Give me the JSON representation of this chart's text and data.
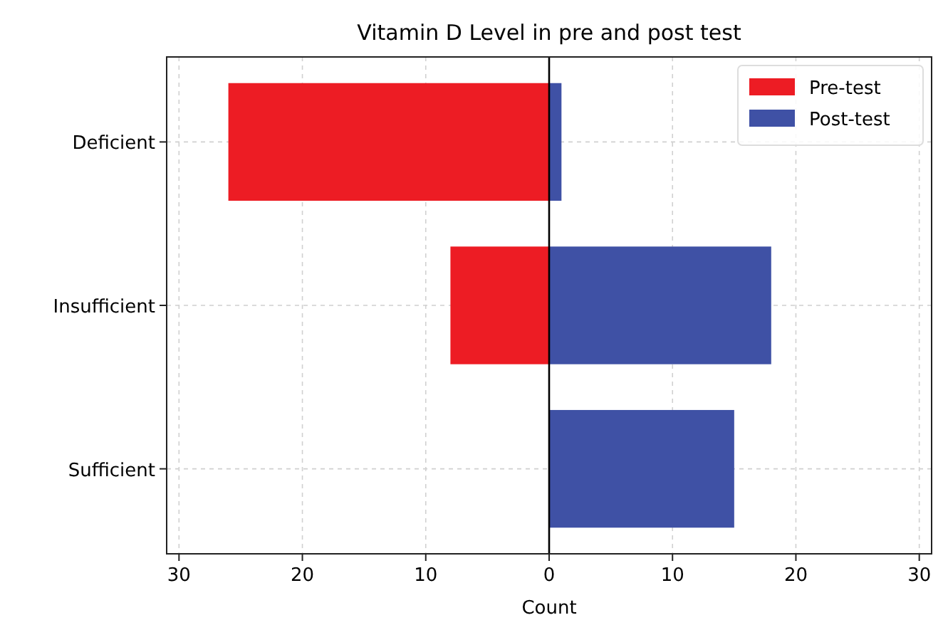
{
  "chart_data": {
    "type": "bar",
    "orientation": "horizontal",
    "title": "Vitamin D Level in pre and post test",
    "xlabel": "Count",
    "categories": [
      "Deficient",
      "Insufficient",
      "Sufficient"
    ],
    "series": [
      {
        "name": "Pre-test",
        "color": "#ed1c24",
        "values": [
          -26,
          -8,
          0
        ]
      },
      {
        "name": "Post-test",
        "color": "#3f51a5",
        "values": [
          1,
          18,
          15
        ]
      }
    ],
    "xlim": [
      -31,
      31
    ],
    "xticks": [
      {
        "value": -30,
        "label": "30"
      },
      {
        "value": -20,
        "label": "20"
      },
      {
        "value": -10,
        "label": "10"
      },
      0,
      10,
      20,
      30
    ],
    "ref_lines": [
      {
        "axis": "x",
        "value": 0,
        "color": "#000000"
      }
    ],
    "stacked": true,
    "grid": true,
    "legend": "top right"
  }
}
